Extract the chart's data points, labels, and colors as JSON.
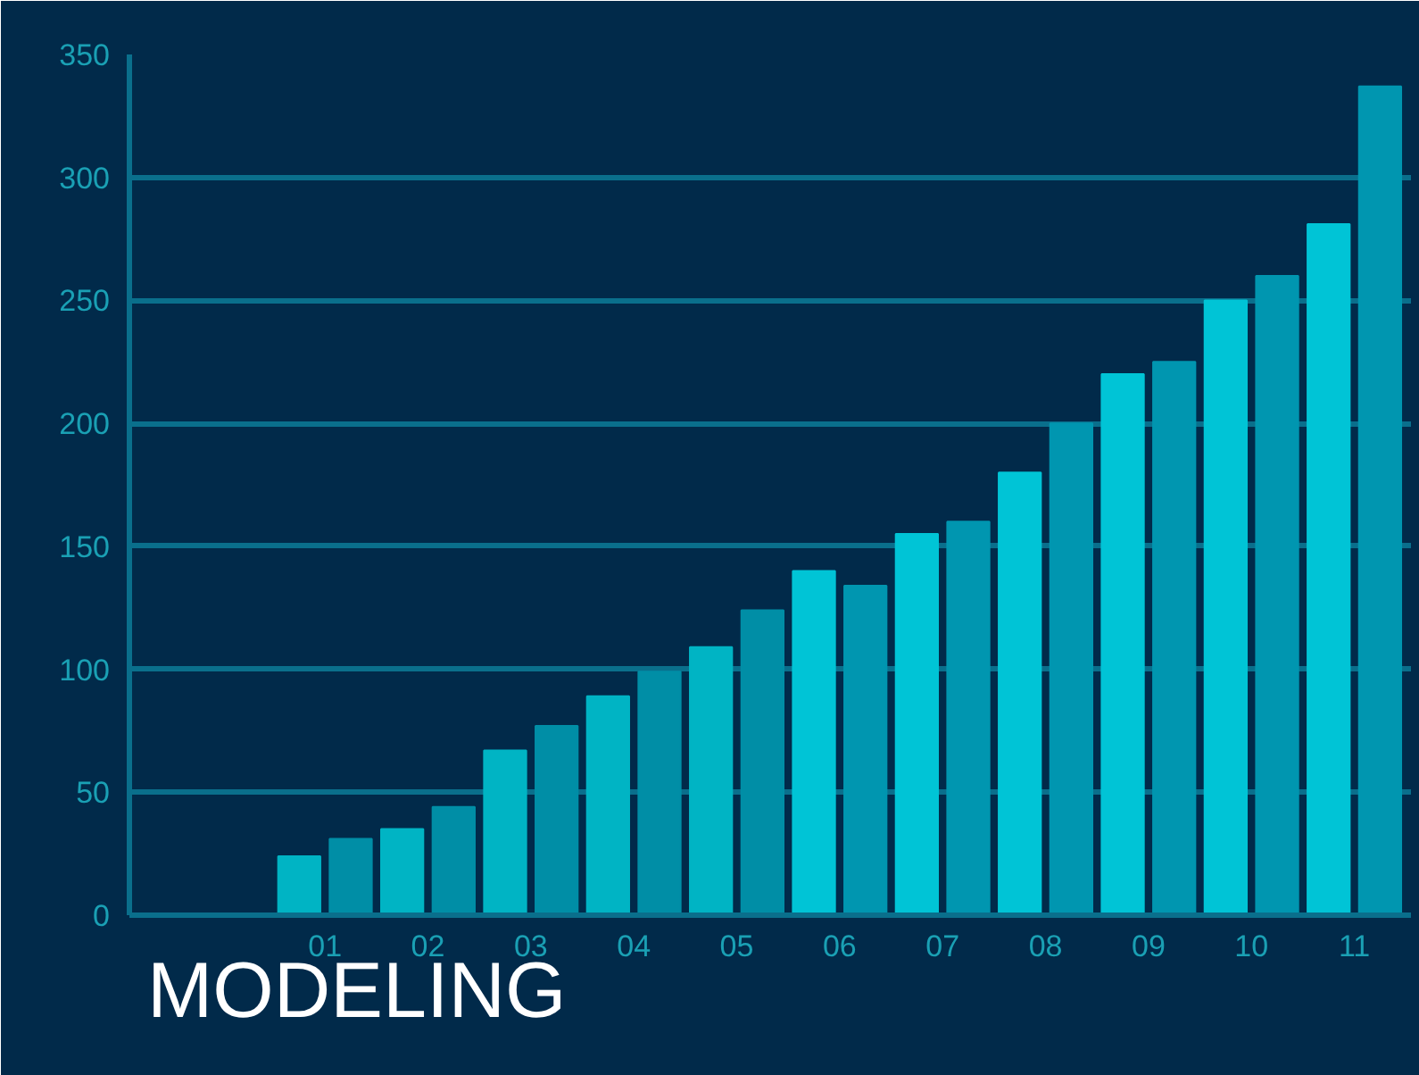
{
  "chart_data": {
    "type": "bar",
    "annotations": [
      "MODELING"
    ],
    "x": [
      0.75,
      1.25,
      1.75,
      2.25,
      2.75,
      3.25,
      3.75,
      4.25,
      4.75,
      5.25,
      5.75,
      6.25,
      6.75,
      7.25,
      7.75,
      8.25,
      8.75,
      9.25,
      9.75,
      10.25,
      10.75,
      11.25
    ],
    "values": [
      24,
      31,
      35,
      44,
      67,
      77,
      89,
      99,
      109,
      124,
      140,
      134,
      155,
      160,
      180,
      200,
      220,
      225,
      250,
      260,
      281,
      337
    ],
    "colors": [
      "#00b4c4",
      "#008ea6",
      "#00b4c4",
      "#008ea6",
      "#00b4c4",
      "#008ea6",
      "#00b4c4",
      "#008ea6",
      "#00b4c4",
      "#008ea6",
      "#00c4d6",
      "#0096b0",
      "#00c4d6",
      "#0096b0",
      "#00c4d6",
      "#0096b0",
      "#00c4d6",
      "#0096b0",
      "#00c4d6",
      "#0096b0",
      "#00c4d6",
      "#0096b0"
    ],
    "xlim": [
      -0.9,
      11.55
    ],
    "xticks": [
      {
        "value": 1,
        "label": "01"
      },
      {
        "value": 2,
        "label": "02"
      },
      {
        "value": 3,
        "label": "03"
      },
      {
        "value": 4,
        "label": "04"
      },
      {
        "value": 5,
        "label": "05"
      },
      {
        "value": 6,
        "label": "06"
      },
      {
        "value": 7,
        "label": "07"
      },
      {
        "value": 8,
        "label": "08"
      },
      {
        "value": 9,
        "label": "09"
      },
      {
        "value": 10,
        "label": "10"
      },
      {
        "value": 11,
        "label": "11"
      }
    ],
    "ylim": [
      0,
      350
    ],
    "yticks": [
      0,
      50,
      100,
      150,
      200,
      250,
      300,
      350
    ],
    "grid": "y"
  }
}
